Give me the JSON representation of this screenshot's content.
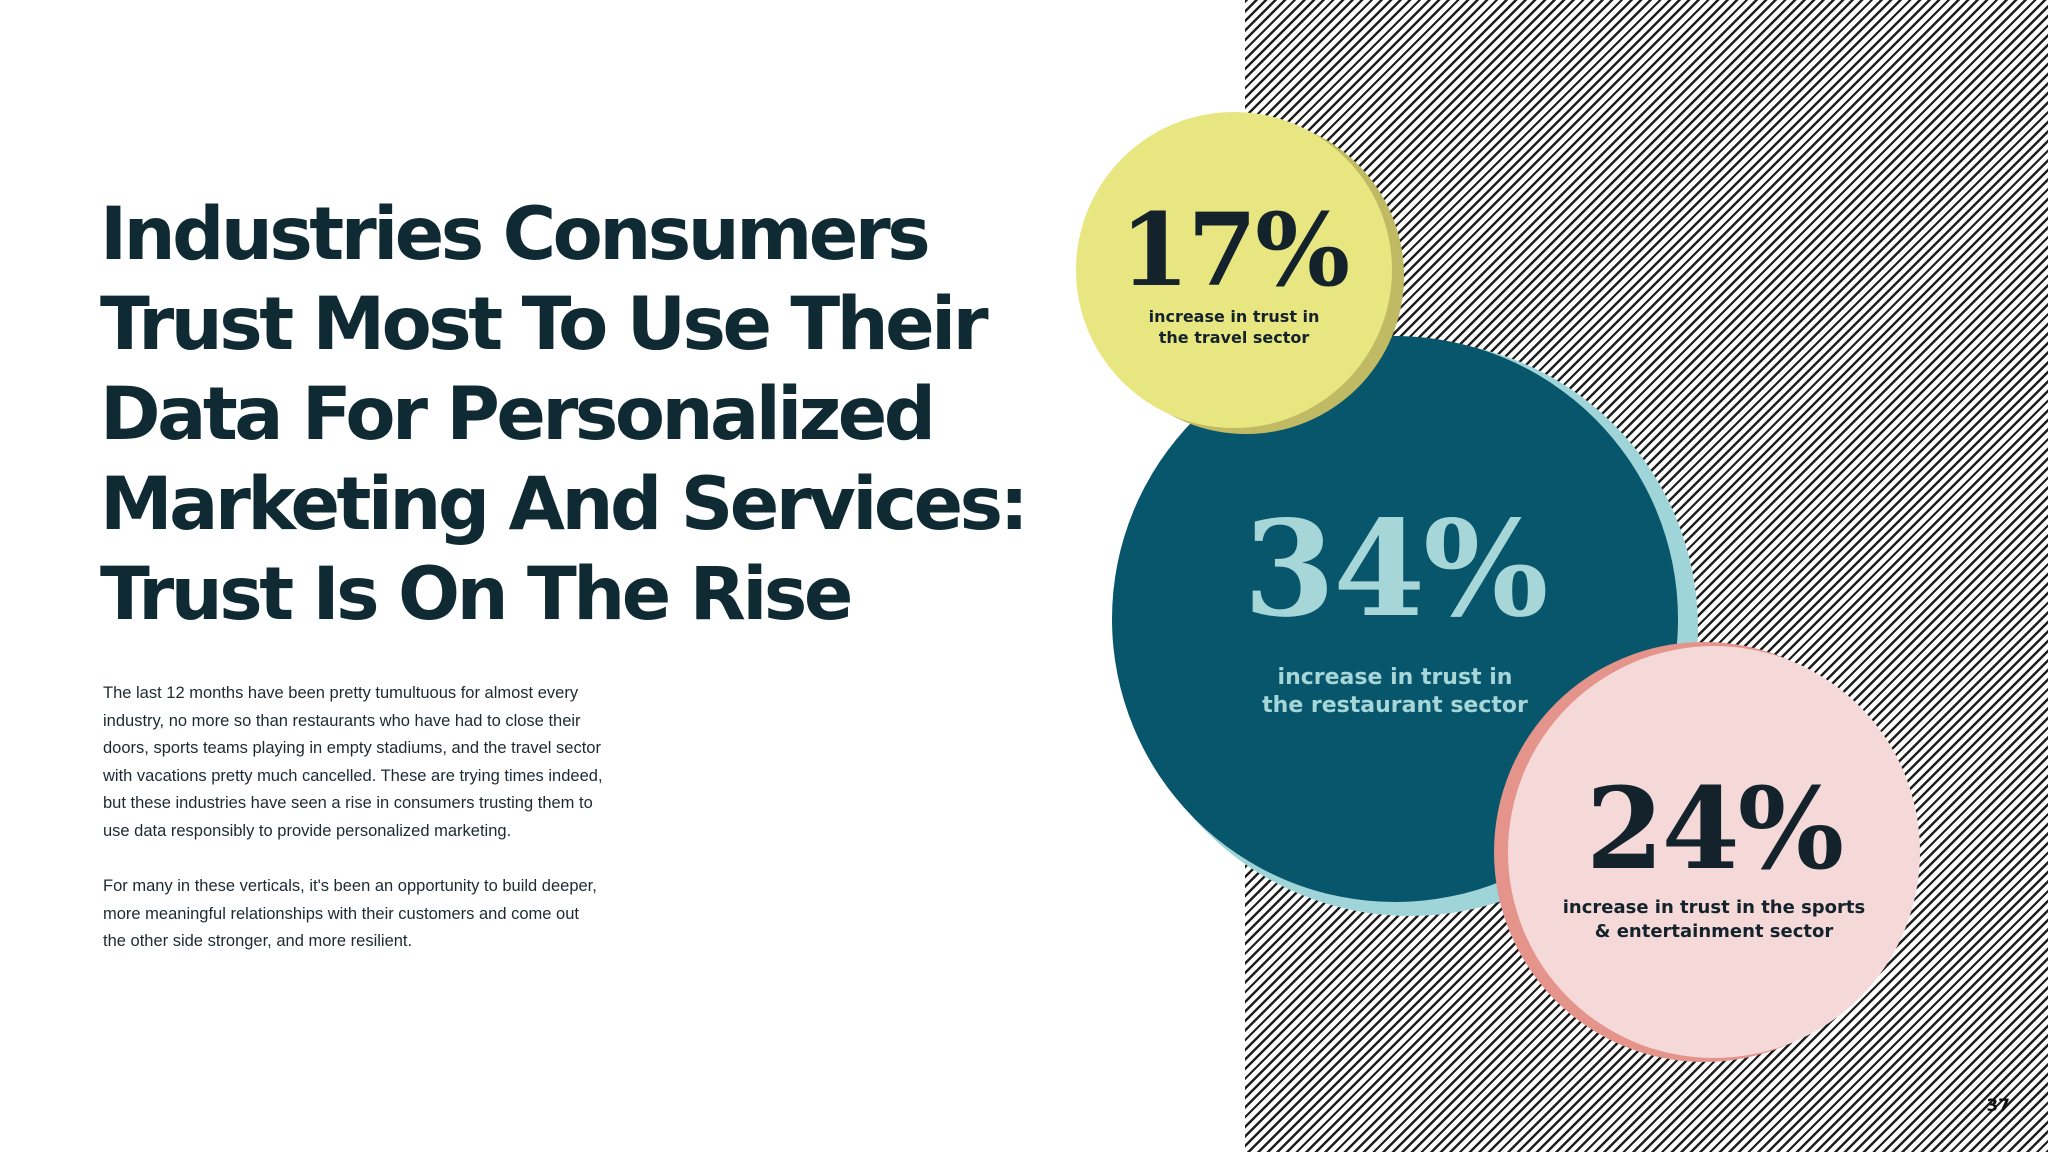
{
  "title": {
    "lines": [
      "Industries Consumers",
      "Trust Most To Use Their",
      "Data For Personalized",
      "Marketing And Services:",
      "Trust Is On The Rise"
    ]
  },
  "body": {
    "paragraph_1": [
      "The last 12 months have been pretty tumultuous for almost every",
      "industry, no more so than restaurants who have had to close their",
      "doors, sports teams playing in empty stadiums, and the travel sector",
      "with vacations pretty much cancelled. These are trying times indeed,",
      "but these industries have seen a rise in consumers trusting them to",
      "use data responsibly to provide personalized marketing."
    ],
    "paragraph_2": [
      "For many in these verticals, it's been an opportunity to build deeper,",
      "more meaningful relationships with their customers and come out",
      "the other side stronger, and more resilient."
    ]
  },
  "stats": {
    "travel": {
      "value": "17%",
      "label_lines": [
        "increase in trust in",
        "the travel sector"
      ],
      "color": "#e8e680"
    },
    "restaurant": {
      "value": "34%",
      "label_lines": [
        "increase in trust in",
        "the restaurant sector"
      ],
      "color": "#07566b"
    },
    "sports": {
      "value": "24%",
      "label_lines": [
        "increase in trust in the sports",
        "& entertainment sector"
      ],
      "color": "#f5d9d8"
    }
  },
  "page_number": "37"
}
